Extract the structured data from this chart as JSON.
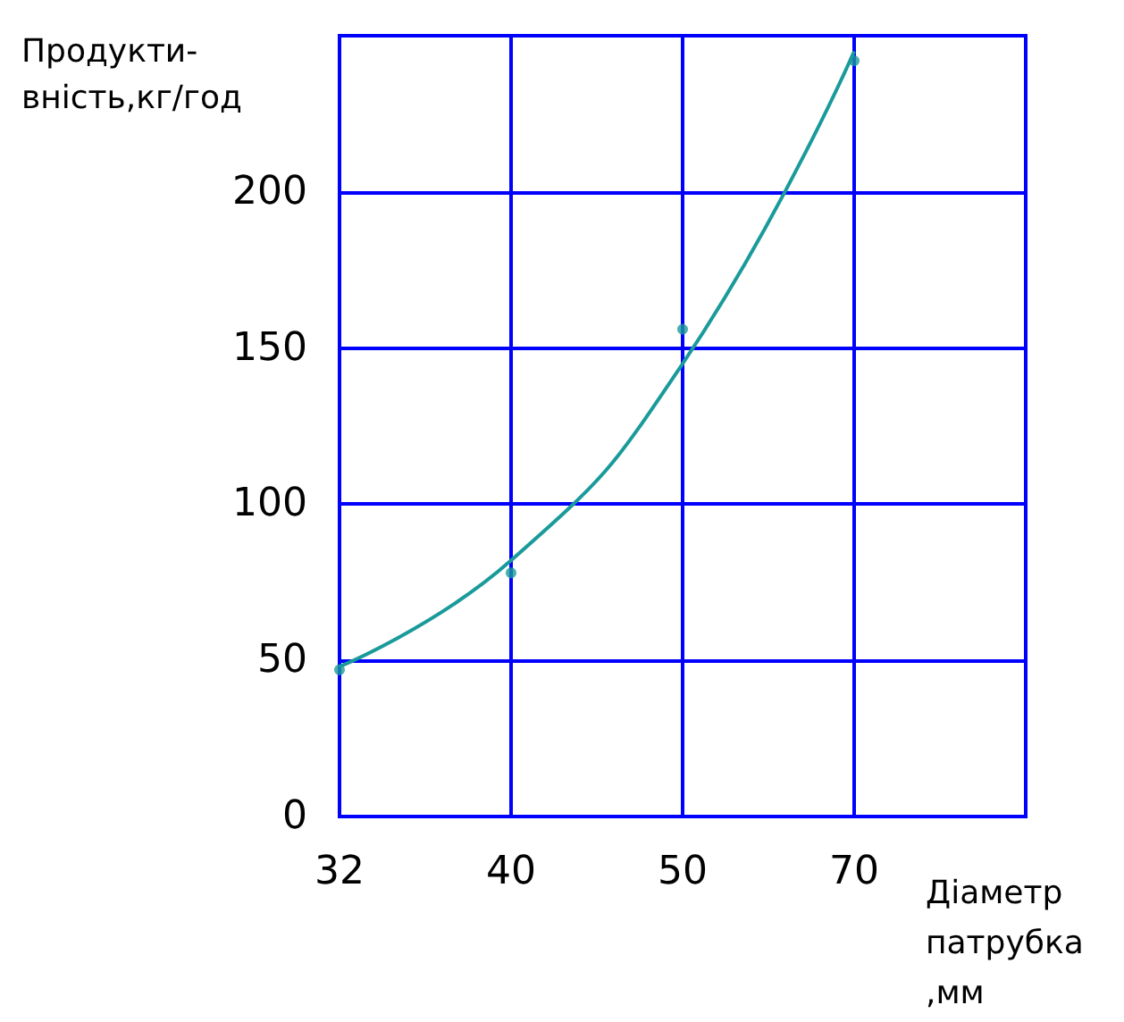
{
  "chart_data": {
    "type": "scatter",
    "xlabel": "Діаметр\nпатрубка\n,мм",
    "ylabel": "Продукти-\nвність,кг/год",
    "categories": [
      "32",
      "40",
      "50",
      "70",
      null
    ],
    "series": [
      {
        "color": "#1a9a9a",
        "values": [
          47,
          78,
          156,
          242,
          null
        ],
        "marker": "circle"
      },
      {
        "type": "line",
        "color": "#1a9a9a",
        "values": [
          48,
          82,
          145,
          245,
          null
        ],
        "marker": "none",
        "line_style": "solid"
      }
    ],
    "ylim": [
      0,
      250
    ],
    "yticks": [
      0,
      50,
      100,
      150,
      200
    ],
    "grid": true
  }
}
